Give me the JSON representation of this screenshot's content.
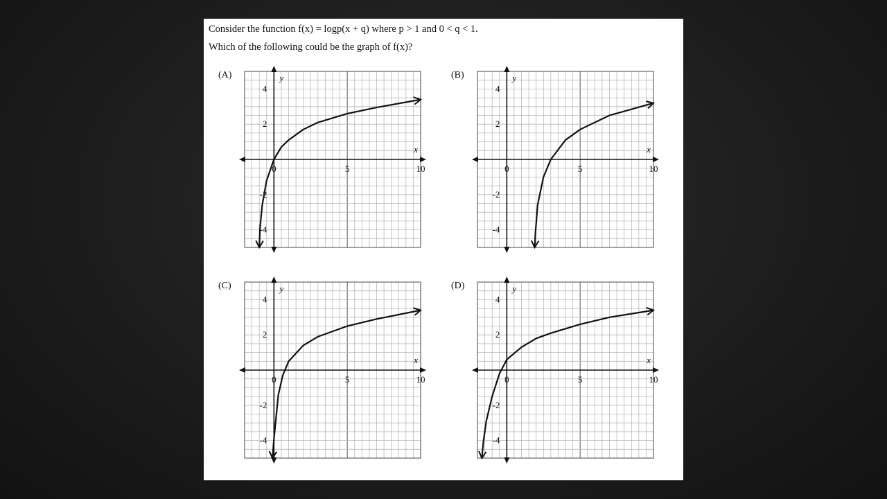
{
  "question": {
    "line1": "Consider the function f(x) = logp(x + q) where p > 1 and 0 < q < 1.",
    "line2": "Which of the following could be the graph of f(x)?"
  },
  "chart_data": [
    {
      "type": "line",
      "label": "(A)",
      "xlim": [
        -2,
        10
      ],
      "ylim": [
        -5,
        5
      ],
      "xlabel": "x",
      "ylabel": "y",
      "x_ticks": [
        "0",
        "5",
        "10"
      ],
      "y_ticks": [
        "4",
        "2",
        "-2",
        "-4"
      ],
      "grid": true,
      "series": [
        {
          "x": [
            -1,
            -0.95,
            -0.8,
            -0.5,
            0,
            0.5,
            1,
            2,
            3,
            5,
            7,
            10
          ],
          "y": [
            -5,
            -3.9,
            -2.6,
            -1.2,
            0,
            0.7,
            1.1,
            1.7,
            2.1,
            2.6,
            2.95,
            3.4
          ]
        }
      ]
    },
    {
      "type": "line",
      "label": "(B)",
      "xlim": [
        -2,
        10
      ],
      "ylim": [
        -5,
        5
      ],
      "xlabel": "x",
      "ylabel": "y",
      "x_ticks": [
        "0",
        "5",
        "10"
      ],
      "y_ticks": [
        "4",
        "2",
        "-2",
        "-4"
      ],
      "grid": true,
      "series": [
        {
          "x": [
            1.9,
            1.95,
            2.1,
            2.5,
            3,
            4,
            5,
            7,
            10
          ],
          "y": [
            -5,
            -4.2,
            -2.6,
            -1,
            0,
            1.1,
            1.7,
            2.5,
            3.2
          ]
        }
      ]
    },
    {
      "type": "line",
      "label": "(C)",
      "xlim": [
        -2,
        10
      ],
      "ylim": [
        -5,
        5
      ],
      "xlabel": "x",
      "ylabel": "y",
      "x_ticks": [
        "0",
        "5",
        "10"
      ],
      "y_ticks": [
        "4",
        "2",
        "-2",
        "-4"
      ],
      "grid": true,
      "series": [
        {
          "x": [
            -0.1,
            0,
            0.3,
            0.6,
            1,
            2,
            3,
            5,
            7,
            10
          ],
          "y": [
            -5,
            -3.9,
            -1.4,
            -0.3,
            0.5,
            1.4,
            1.9,
            2.5,
            2.9,
            3.4
          ]
        }
      ]
    },
    {
      "type": "line",
      "label": "(D)",
      "xlim": [
        -2,
        10
      ],
      "ylim": [
        -5,
        5
      ],
      "xlabel": "x",
      "ylabel": "y",
      "x_ticks": [
        "0",
        "5",
        "10"
      ],
      "y_ticks": [
        "4",
        "2",
        "-2",
        "-4"
      ],
      "grid": true,
      "series": [
        {
          "x": [
            -1.7,
            -1.6,
            -1.4,
            -1,
            -0.5,
            0,
            1,
            2,
            3,
            5,
            7,
            10
          ],
          "y": [
            -5,
            -4.1,
            -2.9,
            -1.5,
            -0.2,
            0.6,
            1.3,
            1.8,
            2.1,
            2.6,
            3,
            3.4
          ]
        }
      ]
    }
  ]
}
